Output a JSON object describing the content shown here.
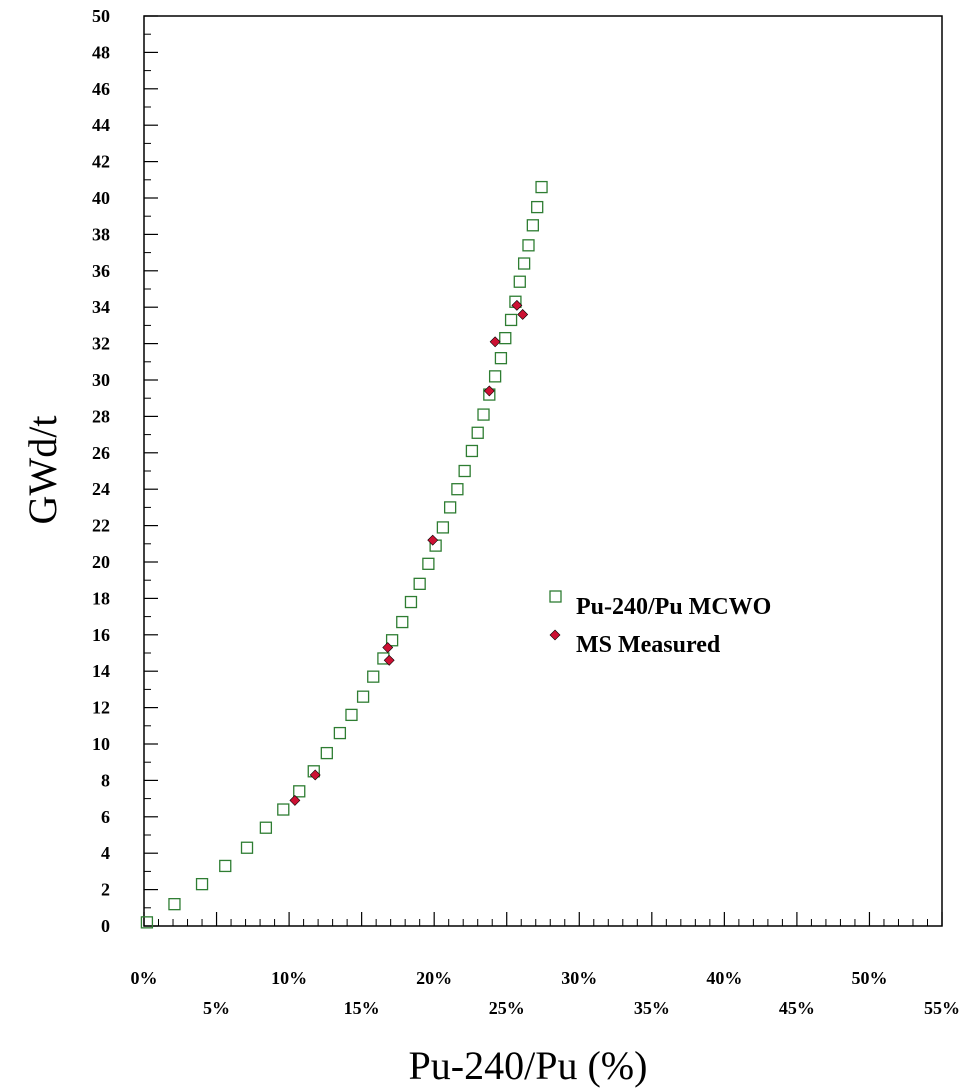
{
  "chart_data": {
    "type": "scatter",
    "xlabel": "Pu-240/Pu (%)",
    "ylabel": "GWd/t",
    "xlim": [
      0,
      55
    ],
    "ylim": [
      0,
      50
    ],
    "x_ticks": [
      "0%",
      "5%",
      "10%",
      "15%",
      "20%",
      "25%",
      "30%",
      "35%",
      "40%",
      "45%",
      "50%",
      "55%"
    ],
    "y_ticks": [
      "0",
      "2",
      "4",
      "6",
      "8",
      "10",
      "12",
      "14",
      "16",
      "18",
      "20",
      "22",
      "24",
      "26",
      "28",
      "30",
      "32",
      "34",
      "36",
      "38",
      "40",
      "42",
      "44",
      "46",
      "48",
      "50"
    ],
    "legend_position": "right",
    "grid": false,
    "series": [
      {
        "name": "Pu-240/Pu MCWO",
        "marker": "open-square",
        "color": "#2e7d32",
        "points": [
          [
            0.2,
            0.2
          ],
          [
            2.1,
            1.2
          ],
          [
            4.0,
            2.3
          ],
          [
            5.6,
            3.3
          ],
          [
            7.1,
            4.3
          ],
          [
            8.4,
            5.4
          ],
          [
            9.6,
            6.4
          ],
          [
            10.7,
            7.4
          ],
          [
            11.7,
            8.5
          ],
          [
            12.6,
            9.5
          ],
          [
            13.5,
            10.6
          ],
          [
            14.3,
            11.6
          ],
          [
            15.1,
            12.6
          ],
          [
            15.8,
            13.7
          ],
          [
            16.5,
            14.7
          ],
          [
            17.1,
            15.7
          ],
          [
            17.8,
            16.7
          ],
          [
            18.4,
            17.8
          ],
          [
            19.0,
            18.8
          ],
          [
            19.6,
            19.9
          ],
          [
            20.1,
            20.9
          ],
          [
            20.6,
            21.9
          ],
          [
            21.1,
            23.0
          ],
          [
            21.6,
            24.0
          ],
          [
            22.1,
            25.0
          ],
          [
            22.6,
            26.1
          ],
          [
            23.0,
            27.1
          ],
          [
            23.4,
            28.1
          ],
          [
            23.8,
            29.2
          ],
          [
            24.2,
            30.2
          ],
          [
            24.6,
            31.2
          ],
          [
            24.9,
            32.3
          ],
          [
            25.3,
            33.3
          ],
          [
            25.6,
            34.3
          ],
          [
            25.9,
            35.4
          ],
          [
            26.2,
            36.4
          ],
          [
            26.5,
            37.4
          ],
          [
            26.8,
            38.5
          ],
          [
            27.1,
            39.5
          ],
          [
            27.4,
            40.6
          ]
        ]
      },
      {
        "name": "MS Measured",
        "marker": "filled-diamond",
        "color": "#cc1133",
        "points": [
          [
            10.4,
            6.9
          ],
          [
            11.8,
            8.3
          ],
          [
            16.8,
            15.3
          ],
          [
            16.9,
            14.6
          ],
          [
            19.9,
            21.2
          ],
          [
            23.8,
            29.4
          ],
          [
            24.2,
            32.1
          ],
          [
            25.7,
            34.1
          ],
          [
            26.1,
            33.6
          ]
        ]
      }
    ]
  }
}
